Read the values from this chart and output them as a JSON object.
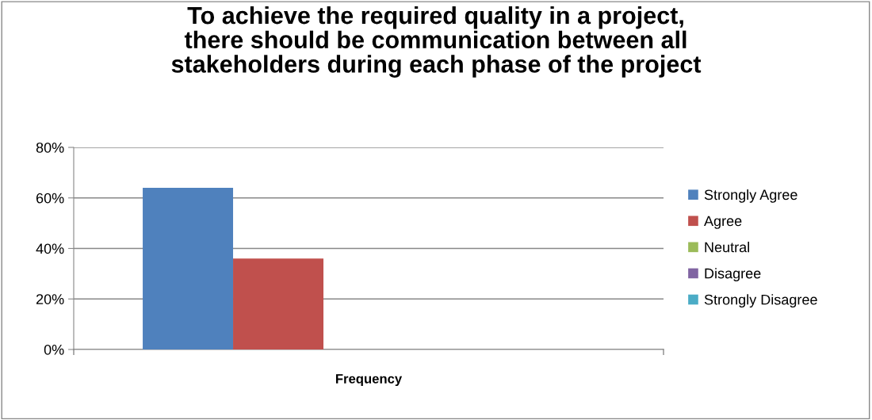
{
  "chart_data": {
    "type": "bar",
    "title": "To achieve the required quality in a project,\nthere should be communication between all\nstakeholders during each phase of the project",
    "categories": [
      "Frequency"
    ],
    "series": [
      {
        "name": "Strongly Agree",
        "color": "#4f81bd",
        "values": [
          64
        ]
      },
      {
        "name": "Agree",
        "color": "#c0504d",
        "values": [
          36
        ]
      },
      {
        "name": "Neutral",
        "color": "#9bbb59",
        "values": [
          0
        ]
      },
      {
        "name": "Disagree",
        "color": "#8064a2",
        "values": [
          0
        ]
      },
      {
        "name": "Strongly Disagree",
        "color": "#4bacc6",
        "values": [
          0
        ]
      }
    ],
    "ylim": [
      0,
      80
    ],
    "yticks": [
      {
        "value": 0,
        "label": "0%"
      },
      {
        "value": 20,
        "label": "20%"
      },
      {
        "value": 40,
        "label": "40%"
      },
      {
        "value": 60,
        "label": "60%"
      },
      {
        "value": 80,
        "label": "80%"
      }
    ],
    "grid": "y",
    "legend": "right"
  }
}
